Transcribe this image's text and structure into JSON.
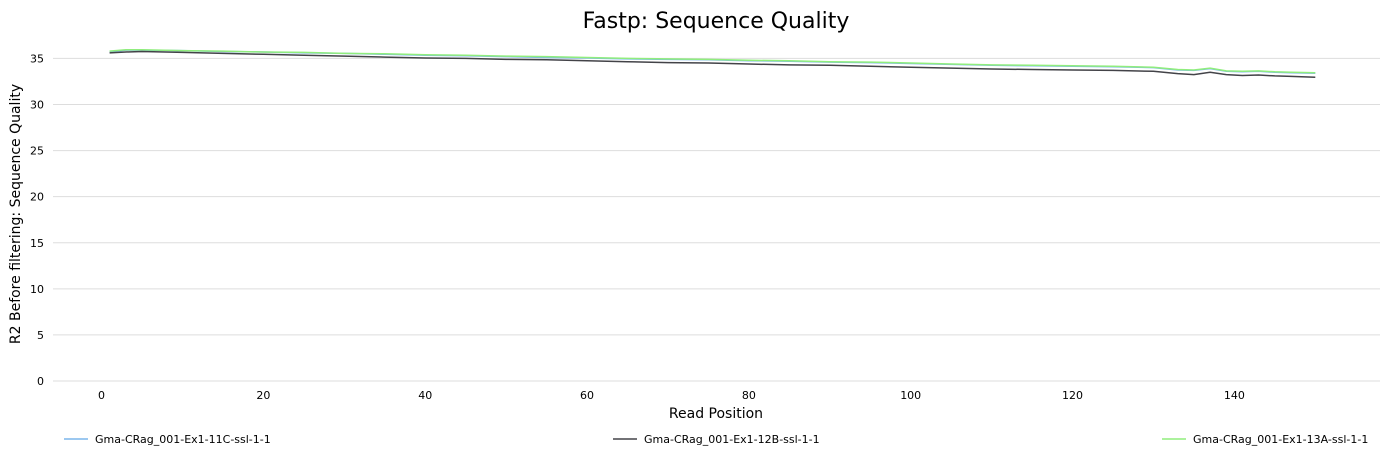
{
  "chart_data": {
    "type": "line",
    "title": "Fastp: Sequence Quality",
    "xlabel": "Read Position",
    "ylabel": "R2 Before filtering: Sequence Quality",
    "xlim": [
      -6,
      158
    ],
    "ylim": [
      0,
      37
    ],
    "x_ticks": [
      0,
      20,
      40,
      60,
      80,
      100,
      120,
      140
    ],
    "y_ticks": [
      0,
      5,
      10,
      15,
      20,
      25,
      30,
      35
    ],
    "grid": "horizontal",
    "legend_position": "bottom",
    "series": [
      {
        "name": "Gma-CRag_001-Ex1-11C-ssl-1-1",
        "color": "#7cb5ec",
        "points": [
          [
            1,
            35.7
          ],
          [
            3,
            35.9
          ],
          [
            5,
            35.9
          ],
          [
            10,
            35.85
          ],
          [
            15,
            35.75
          ],
          [
            20,
            35.7
          ],
          [
            25,
            35.6
          ],
          [
            30,
            35.55
          ],
          [
            35,
            35.45
          ],
          [
            40,
            35.35
          ],
          [
            45,
            35.3
          ],
          [
            50,
            35.2
          ],
          [
            55,
            35.1
          ],
          [
            60,
            35.05
          ],
          [
            65,
            34.95
          ],
          [
            70,
            34.9
          ],
          [
            75,
            34.85
          ],
          [
            80,
            34.75
          ],
          [
            85,
            34.7
          ],
          [
            90,
            34.6
          ],
          [
            95,
            34.55
          ],
          [
            100,
            34.45
          ],
          [
            105,
            34.35
          ],
          [
            110,
            34.25
          ],
          [
            115,
            34.2
          ],
          [
            120,
            34.15
          ],
          [
            125,
            34.1
          ],
          [
            130,
            34.0
          ],
          [
            133,
            33.75
          ],
          [
            135,
            33.7
          ],
          [
            137,
            33.9
          ],
          [
            139,
            33.6
          ],
          [
            141,
            33.55
          ],
          [
            143,
            33.6
          ],
          [
            145,
            33.5
          ],
          [
            147,
            33.45
          ],
          [
            150,
            33.4
          ]
        ]
      },
      {
        "name": "Gma-CRag_001-Ex1-12B-ssl-1-1",
        "color": "#434348",
        "points": [
          [
            1,
            35.6
          ],
          [
            3,
            35.7
          ],
          [
            5,
            35.75
          ],
          [
            10,
            35.65
          ],
          [
            15,
            35.55
          ],
          [
            20,
            35.45
          ],
          [
            25,
            35.35
          ],
          [
            30,
            35.25
          ],
          [
            35,
            35.15
          ],
          [
            40,
            35.05
          ],
          [
            45,
            35.0
          ],
          [
            50,
            34.9
          ],
          [
            55,
            34.85
          ],
          [
            60,
            34.75
          ],
          [
            65,
            34.65
          ],
          [
            70,
            34.55
          ],
          [
            75,
            34.5
          ],
          [
            80,
            34.4
          ],
          [
            85,
            34.3
          ],
          [
            90,
            34.25
          ],
          [
            95,
            34.15
          ],
          [
            100,
            34.05
          ],
          [
            105,
            33.95
          ],
          [
            110,
            33.85
          ],
          [
            115,
            33.8
          ],
          [
            120,
            33.75
          ],
          [
            125,
            33.7
          ],
          [
            130,
            33.6
          ],
          [
            133,
            33.35
          ],
          [
            135,
            33.25
          ],
          [
            137,
            33.5
          ],
          [
            139,
            33.25
          ],
          [
            141,
            33.15
          ],
          [
            143,
            33.2
          ],
          [
            145,
            33.1
          ],
          [
            147,
            33.05
          ],
          [
            150,
            32.95
          ]
        ]
      },
      {
        "name": "Gma-CRag_001-Ex1-13A-ssl-1-1",
        "color": "#90ed7d",
        "points": [
          [
            1,
            35.8
          ],
          [
            3,
            35.95
          ],
          [
            5,
            35.95
          ],
          [
            10,
            35.85
          ],
          [
            15,
            35.8
          ],
          [
            20,
            35.7
          ],
          [
            25,
            35.65
          ],
          [
            30,
            35.55
          ],
          [
            35,
            35.5
          ],
          [
            40,
            35.4
          ],
          [
            45,
            35.35
          ],
          [
            50,
            35.25
          ],
          [
            55,
            35.2
          ],
          [
            60,
            35.1
          ],
          [
            65,
            35.0
          ],
          [
            70,
            34.95
          ],
          [
            75,
            34.9
          ],
          [
            80,
            34.8
          ],
          [
            85,
            34.75
          ],
          [
            90,
            34.65
          ],
          [
            95,
            34.6
          ],
          [
            100,
            34.5
          ],
          [
            105,
            34.4
          ],
          [
            110,
            34.3
          ],
          [
            115,
            34.25
          ],
          [
            120,
            34.2
          ],
          [
            125,
            34.15
          ],
          [
            130,
            34.05
          ],
          [
            133,
            33.8
          ],
          [
            135,
            33.75
          ],
          [
            137,
            33.95
          ],
          [
            139,
            33.65
          ],
          [
            141,
            33.6
          ],
          [
            143,
            33.65
          ],
          [
            145,
            33.55
          ],
          [
            147,
            33.5
          ],
          [
            150,
            33.45
          ]
        ]
      }
    ]
  }
}
